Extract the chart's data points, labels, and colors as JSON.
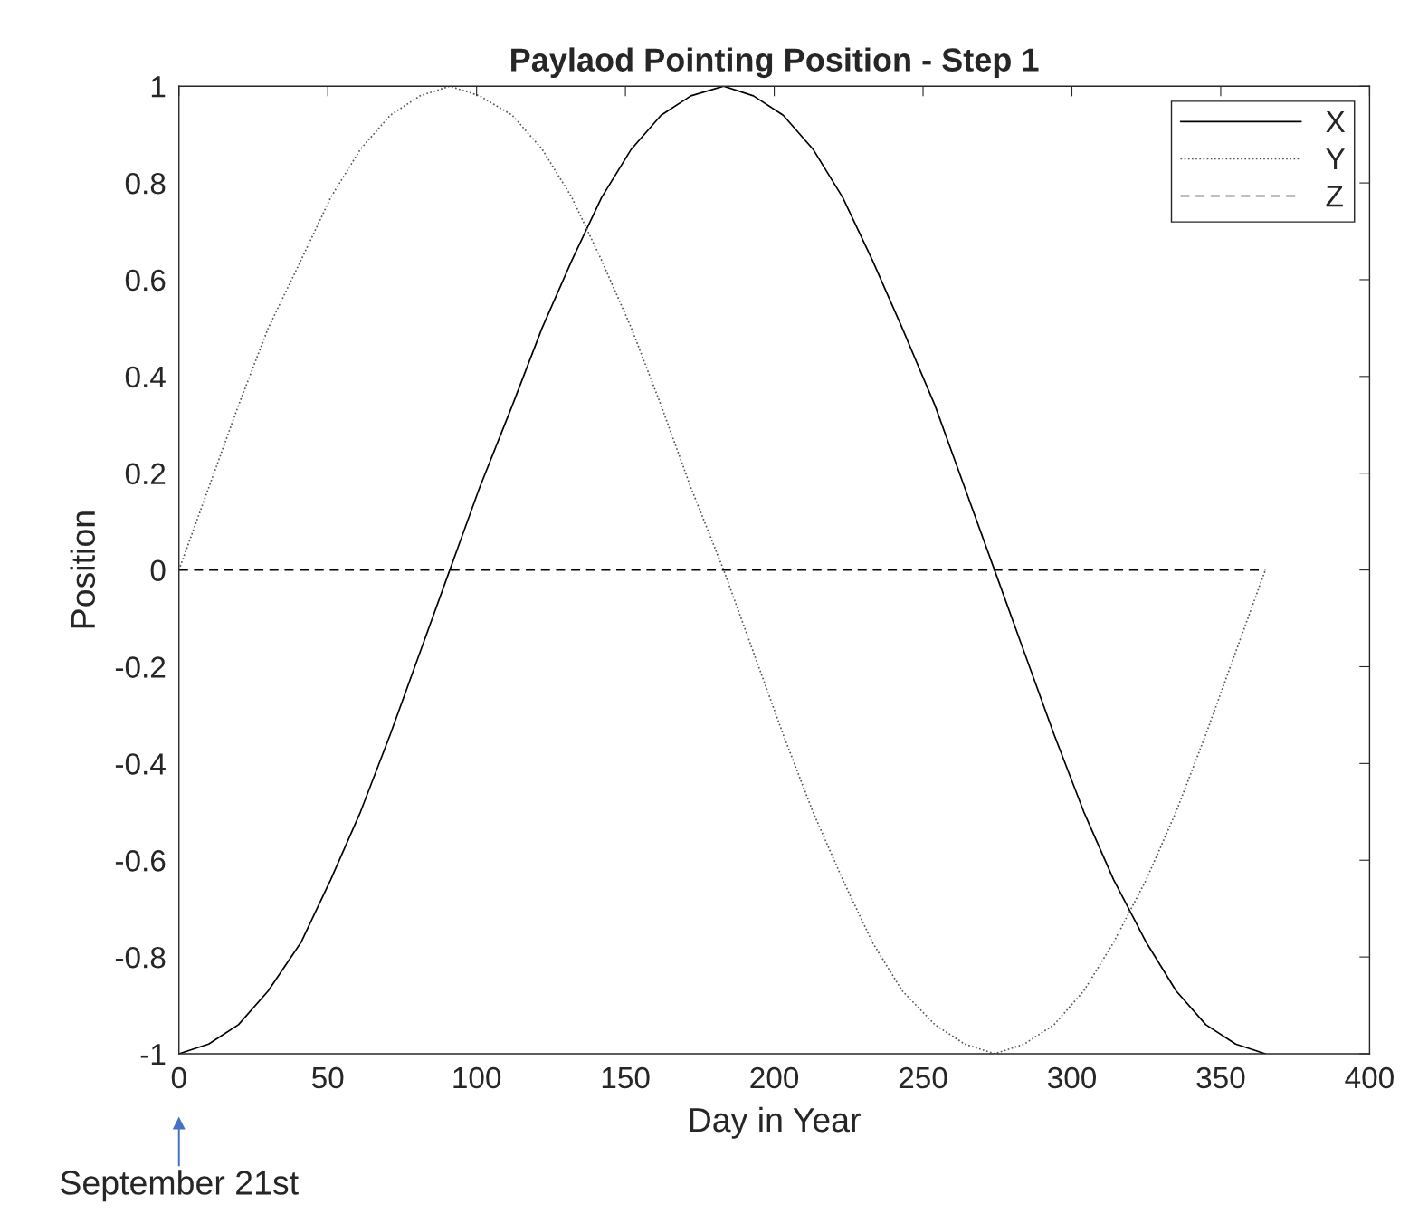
{
  "chart_data": {
    "type": "line",
    "title": "Paylaod Pointing Position - Step 1",
    "xlabel": "Day in Year",
    "ylabel": "Position",
    "series": [
      {
        "name": "X",
        "color": "#000000",
        "line_style": "solid",
        "x": [
          0,
          10,
          20,
          30,
          41,
          51,
          61,
          71,
          81,
          91,
          101,
          112,
          122,
          132,
          142,
          152,
          162,
          172,
          183,
          193,
          203,
          213,
          223,
          233,
          243,
          254,
          264,
          274,
          284,
          294,
          304,
          314,
          325,
          335,
          345,
          355,
          365
        ],
        "values": [
          -1,
          -0.98,
          -0.94,
          -0.87,
          -0.77,
          -0.64,
          -0.5,
          -0.34,
          -0.17,
          0,
          0.17,
          0.34,
          0.5,
          0.64,
          0.77,
          0.87,
          0.94,
          0.98,
          1,
          0.98,
          0.94,
          0.87,
          0.77,
          0.64,
          0.5,
          0.34,
          0.17,
          0,
          -0.17,
          -0.34,
          -0.5,
          -0.64,
          -0.77,
          -0.87,
          -0.94,
          -0.98,
          -1
        ]
      },
      {
        "name": "Y",
        "color": "#555555",
        "line_style": "dotted",
        "x": [
          0,
          10,
          20,
          30,
          41,
          51,
          61,
          71,
          81,
          91,
          101,
          112,
          122,
          132,
          142,
          152,
          162,
          172,
          183,
          193,
          203,
          213,
          223,
          233,
          243,
          254,
          264,
          274,
          284,
          294,
          304,
          314,
          325,
          335,
          345,
          355,
          365
        ],
        "values": [
          0,
          0.17,
          0.34,
          0.5,
          0.64,
          0.77,
          0.87,
          0.94,
          0.98,
          1,
          0.98,
          0.94,
          0.87,
          0.77,
          0.64,
          0.5,
          0.34,
          0.17,
          0,
          -0.17,
          -0.34,
          -0.5,
          -0.64,
          -0.77,
          -0.87,
          -0.94,
          -0.98,
          -1,
          -0.98,
          -0.94,
          -0.87,
          -0.77,
          -0.64,
          -0.5,
          -0.34,
          -0.17,
          0
        ]
      },
      {
        "name": "Z",
        "color": "#000000",
        "line_style": "dashed",
        "x": [
          0,
          365
        ],
        "values": [
          0,
          0
        ]
      }
    ],
    "xlim": [
      0,
      400
    ],
    "xticks": [
      0,
      50,
      100,
      150,
      200,
      250,
      300,
      350,
      400
    ],
    "ylim": [
      -1,
      1
    ],
    "yticks": [
      -1,
      -0.8,
      -0.6,
      -0.4,
      -0.2,
      0,
      0.2,
      0.4,
      0.6,
      0.8,
      1
    ],
    "grid": false,
    "legend": "top right",
    "annotations": [
      "September 21st"
    ]
  }
}
